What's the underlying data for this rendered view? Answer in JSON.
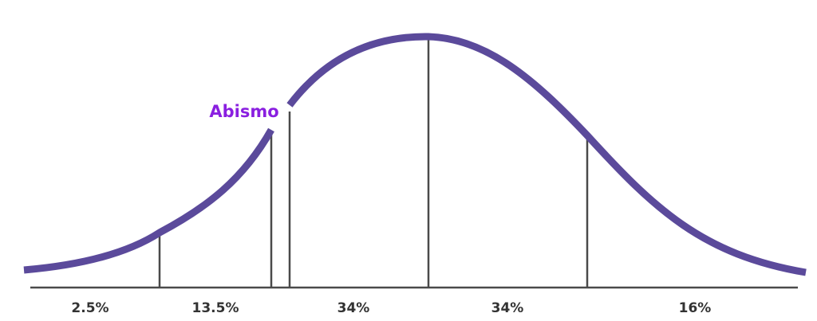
{
  "diagram": {
    "annotation": "Abismo",
    "segments": [
      {
        "label": "2.5%"
      },
      {
        "label": "13.5%"
      },
      {
        "label": "34%"
      },
      {
        "label": "34%"
      },
      {
        "label": "16%"
      }
    ]
  },
  "colors": {
    "curve": "#5b4a9b",
    "annotation": "#8a1fe0",
    "lines": "#4a4a4a",
    "labels": "#333333",
    "background": "#ffffff"
  }
}
